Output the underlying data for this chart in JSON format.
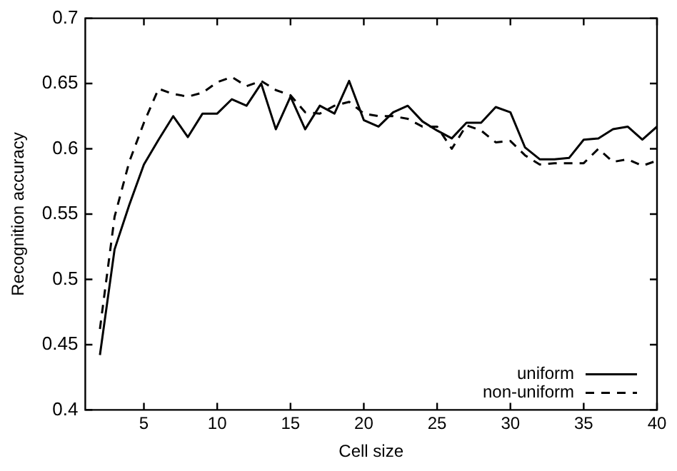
{
  "chart_data": {
    "type": "line",
    "xlabel": "Cell size",
    "ylabel": "Recognition accuracy",
    "x": [
      2,
      3,
      4,
      5,
      6,
      7,
      8,
      9,
      10,
      11,
      12,
      13,
      14,
      15,
      16,
      17,
      18,
      19,
      20,
      21,
      22,
      23,
      24,
      25,
      26,
      27,
      28,
      29,
      30,
      31,
      32,
      33,
      34,
      35,
      36,
      37,
      38,
      39,
      40
    ],
    "series": [
      {
        "name": "uniform",
        "color": "#000000",
        "line_style": "solid",
        "values": [
          0.442,
          0.523,
          0.557,
          0.588,
          0.607,
          0.625,
          0.609,
          0.627,
          0.627,
          0.638,
          0.633,
          0.65,
          0.615,
          0.64,
          0.615,
          0.633,
          0.627,
          0.652,
          0.622,
          0.617,
          0.628,
          0.633,
          0.621,
          0.614,
          0.608,
          0.62,
          0.62,
          0.632,
          0.628,
          0.601,
          0.592,
          0.592,
          0.593,
          0.607,
          0.608,
          0.615,
          0.617,
          0.607,
          0.617
        ]
      },
      {
        "name": "non-uniform",
        "color": "#000000",
        "line_style": "dashed",
        "values": [
          0.462,
          0.548,
          0.59,
          0.62,
          0.646,
          0.642,
          0.64,
          0.643,
          0.651,
          0.655,
          0.648,
          0.652,
          0.645,
          0.641,
          0.628,
          0.627,
          0.633,
          0.636,
          0.627,
          0.625,
          0.625,
          0.623,
          0.617,
          0.617,
          0.6,
          0.618,
          0.614,
          0.605,
          0.606,
          0.595,
          0.588,
          0.589,
          0.589,
          0.589,
          0.6,
          0.59,
          0.592,
          0.587,
          0.591
        ]
      }
    ],
    "xlim": [
      1,
      40
    ],
    "xticks": [
      5,
      10,
      15,
      20,
      25,
      30,
      35,
      40
    ],
    "ylim": [
      0.4,
      0.7
    ],
    "yticks": [
      0.4,
      0.45,
      0.5,
      0.55,
      0.6,
      0.65,
      0.7
    ],
    "grid": false,
    "legend": "bottom right",
    "marker": "none"
  }
}
